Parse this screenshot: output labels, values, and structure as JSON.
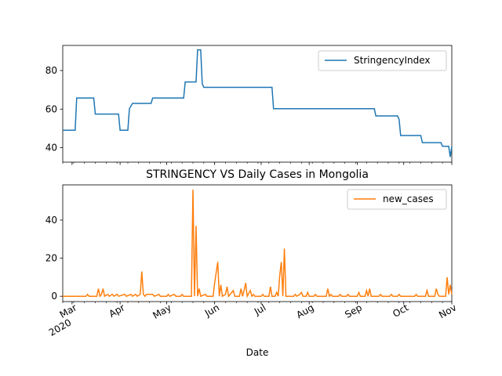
{
  "chart_data": [
    {
      "type": "line",
      "title": "",
      "xlabel": "",
      "ylabel": "",
      "x_start": "2020-02-24",
      "x_end": "2020-11-01",
      "ylim": [
        32.5,
        93.0
      ],
      "yticks": [
        40,
        60,
        80
      ],
      "legend_position": "top-right",
      "series": [
        {
          "name": "StringencyIndex",
          "color": "#1f77b4",
          "points": [
            [
              "2020-02-24",
              49.07
            ],
            [
              "2020-03-03",
              49.07
            ],
            [
              "2020-03-04",
              65.74
            ],
            [
              "2020-03-15",
              65.74
            ],
            [
              "2020-03-16",
              57.41
            ],
            [
              "2020-03-31",
              57.41
            ],
            [
              "2020-04-01",
              49.07
            ],
            [
              "2020-04-06",
              49.07
            ],
            [
              "2020-04-07",
              60.19
            ],
            [
              "2020-04-09",
              62.96
            ],
            [
              "2020-04-21",
              62.96
            ],
            [
              "2020-04-22",
              65.74
            ],
            [
              "2020-05-12",
              65.74
            ],
            [
              "2020-05-13",
              74.07
            ],
            [
              "2020-05-20",
              74.07
            ],
            [
              "2020-05-21",
              90.74
            ],
            [
              "2020-05-23",
              90.74
            ],
            [
              "2020-05-24",
              73.15
            ],
            [
              "2020-05-25",
              71.3
            ],
            [
              "2020-07-08",
              71.3
            ],
            [
              "2020-07-09",
              60.19
            ],
            [
              "2020-09-12",
              60.19
            ],
            [
              "2020-09-13",
              56.48
            ],
            [
              "2020-09-27",
              56.48
            ],
            [
              "2020-09-28",
              54.63
            ],
            [
              "2020-09-29",
              46.3
            ],
            [
              "2020-10-12",
              46.3
            ],
            [
              "2020-10-13",
              42.59
            ],
            [
              "2020-10-25",
              42.59
            ],
            [
              "2020-10-26",
              40.74
            ],
            [
              "2020-10-30",
              40.74
            ],
            [
              "2020-10-31",
              35.19
            ],
            [
              "2020-11-01",
              40.74
            ]
          ]
        }
      ]
    },
    {
      "type": "line",
      "title": "STRINGENCY VS Daily Cases in Mongolia",
      "xlabel": "Date",
      "ylabel": "",
      "x_start": "2020-02-24",
      "x_end": "2020-11-01",
      "ylim": [
        -2.8,
        58.5
      ],
      "yticks": [
        0,
        20,
        40
      ],
      "xticks": [
        {
          "date": "2020-03-01",
          "label": "Mar"
        },
        {
          "date": "2020-04-01",
          "label": "Apr"
        },
        {
          "date": "2020-05-01",
          "label": "May"
        },
        {
          "date": "2020-06-01",
          "label": "Jun"
        },
        {
          "date": "2020-07-01",
          "label": "Jul"
        },
        {
          "date": "2020-08-01",
          "label": "Aug"
        },
        {
          "date": "2020-09-01",
          "label": "Sep"
        },
        {
          "date": "2020-10-01",
          "label": "Oct"
        },
        {
          "date": "2020-11-01",
          "label": "Nov"
        }
      ],
      "year_label": "2020",
      "legend_position": "top-right",
      "series": [
        {
          "name": "new_cases",
          "color": "#ff7f0e",
          "points": [
            [
              "2020-02-24",
              0
            ],
            [
              "2020-03-10",
              0
            ],
            [
              "2020-03-11",
              1
            ],
            [
              "2020-03-12",
              0
            ],
            [
              "2020-03-17",
              0
            ],
            [
              "2020-03-18",
              4
            ],
            [
              "2020-03-19",
              0
            ],
            [
              "2020-03-20",
              1
            ],
            [
              "2020-03-21",
              4
            ],
            [
              "2020-03-22",
              0
            ],
            [
              "2020-03-24",
              1
            ],
            [
              "2020-03-25",
              0
            ],
            [
              "2020-03-27",
              1
            ],
            [
              "2020-03-28",
              0
            ],
            [
              "2020-03-30",
              1
            ],
            [
              "2020-03-31",
              0
            ],
            [
              "2020-04-04",
              1
            ],
            [
              "2020-04-05",
              0
            ],
            [
              "2020-04-08",
              1
            ],
            [
              "2020-04-09",
              0
            ],
            [
              "2020-04-11",
              1
            ],
            [
              "2020-04-12",
              0
            ],
            [
              "2020-04-14",
              1
            ],
            [
              "2020-04-15",
              13
            ],
            [
              "2020-04-16",
              1
            ],
            [
              "2020-04-17",
              0
            ],
            [
              "2020-04-18",
              1
            ],
            [
              "2020-04-22",
              1
            ],
            [
              "2020-04-23",
              0
            ],
            [
              "2020-04-26",
              1
            ],
            [
              "2020-04-27",
              0
            ],
            [
              "2020-05-01",
              0
            ],
            [
              "2020-05-02",
              1
            ],
            [
              "2020-05-03",
              0
            ],
            [
              "2020-05-06",
              1
            ],
            [
              "2020-05-07",
              0
            ],
            [
              "2020-05-10",
              0
            ],
            [
              "2020-05-11",
              1
            ],
            [
              "2020-05-12",
              0
            ],
            [
              "2020-05-17",
              0
            ],
            [
              "2020-05-18",
              56
            ],
            [
              "2020-05-19",
              0
            ],
            [
              "2020-05-20",
              37
            ],
            [
              "2020-05-21",
              0
            ],
            [
              "2020-05-22",
              4
            ],
            [
              "2020-05-23",
              0
            ],
            [
              "2020-05-26",
              1
            ],
            [
              "2020-05-27",
              0
            ],
            [
              "2020-05-31",
              0
            ],
            [
              "2020-06-01",
              7
            ],
            [
              "2020-06-03",
              18
            ],
            [
              "2020-06-04",
              0
            ],
            [
              "2020-06-05",
              6
            ],
            [
              "2020-06-06",
              0
            ],
            [
              "2020-06-08",
              1
            ],
            [
              "2020-06-09",
              5
            ],
            [
              "2020-06-10",
              0
            ],
            [
              "2020-06-13",
              3
            ],
            [
              "2020-06-14",
              0
            ],
            [
              "2020-06-17",
              0
            ],
            [
              "2020-06-18",
              4
            ],
            [
              "2020-06-19",
              0
            ],
            [
              "2020-06-20",
              3
            ],
            [
              "2020-06-21",
              7
            ],
            [
              "2020-06-22",
              0
            ],
            [
              "2020-06-24",
              3
            ],
            [
              "2020-06-25",
              0
            ],
            [
              "2020-06-26",
              1
            ],
            [
              "2020-06-27",
              0
            ],
            [
              "2020-07-01",
              0
            ],
            [
              "2020-07-02",
              1
            ],
            [
              "2020-07-03",
              0
            ],
            [
              "2020-07-06",
              0
            ],
            [
              "2020-07-07",
              5
            ],
            [
              "2020-07-08",
              0
            ],
            [
              "2020-07-10",
              0
            ],
            [
              "2020-07-11",
              2
            ],
            [
              "2020-07-12",
              0
            ],
            [
              "2020-07-13",
              11
            ],
            [
              "2020-07-14",
              18
            ],
            [
              "2020-07-15",
              0
            ],
            [
              "2020-07-16",
              25
            ],
            [
              "2020-07-17",
              0
            ],
            [
              "2020-07-22",
              0
            ],
            [
              "2020-07-23",
              1
            ],
            [
              "2020-07-24",
              0
            ],
            [
              "2020-07-26",
              1
            ],
            [
              "2020-07-27",
              2
            ],
            [
              "2020-07-28",
              0
            ],
            [
              "2020-07-30",
              0
            ],
            [
              "2020-07-31",
              2
            ],
            [
              "2020-08-01",
              0
            ],
            [
              "2020-08-04",
              0
            ],
            [
              "2020-08-05",
              1
            ],
            [
              "2020-08-06",
              0
            ],
            [
              "2020-08-12",
              0
            ],
            [
              "2020-08-13",
              4
            ],
            [
              "2020-08-14",
              0
            ],
            [
              "2020-08-15",
              1
            ],
            [
              "2020-08-16",
              0
            ],
            [
              "2020-08-20",
              0
            ],
            [
              "2020-08-21",
              1
            ],
            [
              "2020-08-22",
              0
            ],
            [
              "2020-08-25",
              0
            ],
            [
              "2020-08-26",
              1
            ],
            [
              "2020-08-27",
              0
            ],
            [
              "2020-09-01",
              0
            ],
            [
              "2020-09-02",
              2
            ],
            [
              "2020-09-03",
              0
            ],
            [
              "2020-09-06",
              0
            ],
            [
              "2020-09-07",
              3
            ],
            [
              "2020-09-08",
              0
            ],
            [
              "2020-09-09",
              4
            ],
            [
              "2020-09-10",
              0
            ],
            [
              "2020-09-15",
              0
            ],
            [
              "2020-09-16",
              1
            ],
            [
              "2020-09-17",
              0
            ],
            [
              "2020-09-22",
              0
            ],
            [
              "2020-09-23",
              1
            ],
            [
              "2020-09-24",
              0
            ],
            [
              "2020-09-27",
              0
            ],
            [
              "2020-09-28",
              1
            ],
            [
              "2020-09-29",
              0
            ],
            [
              "2020-10-08",
              0
            ],
            [
              "2020-10-09",
              1
            ],
            [
              "2020-10-10",
              0
            ],
            [
              "2020-10-15",
              0
            ],
            [
              "2020-10-16",
              3
            ],
            [
              "2020-10-17",
              0
            ],
            [
              "2020-10-21",
              0
            ],
            [
              "2020-10-22",
              4
            ],
            [
              "2020-10-23",
              1
            ],
            [
              "2020-10-24",
              0
            ],
            [
              "2020-10-28",
              0
            ],
            [
              "2020-10-29",
              10
            ],
            [
              "2020-10-30",
              1
            ],
            [
              "2020-10-31",
              6
            ],
            [
              "2020-11-01",
              1
            ]
          ]
        }
      ]
    }
  ]
}
